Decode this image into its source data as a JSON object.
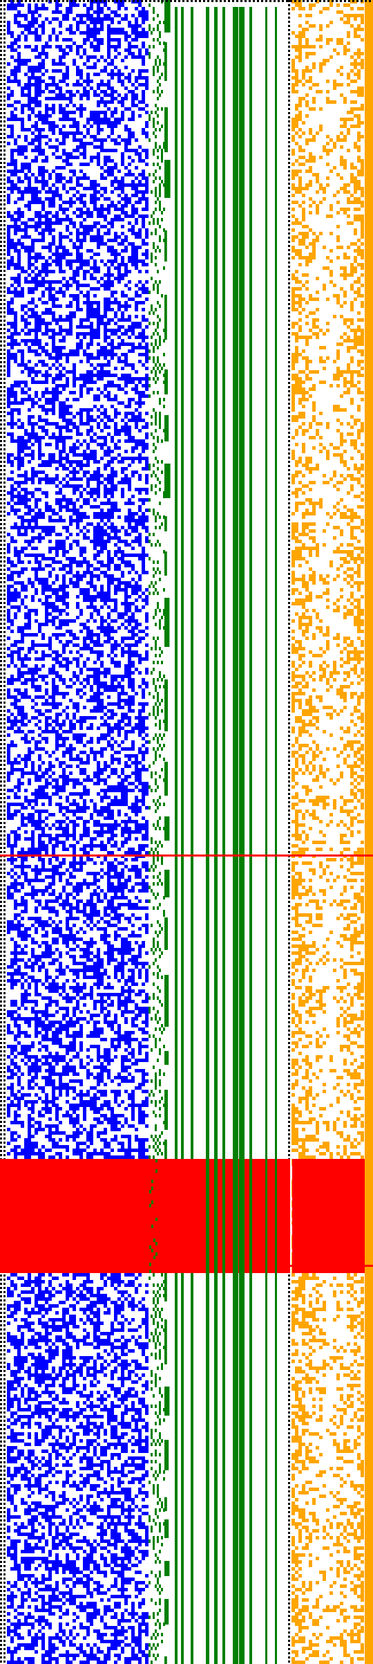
{
  "visualization": {
    "description_free": true,
    "palette": {
      "background": "#ffffff",
      "boundary": "#000000",
      "left_random_field": "#0000ff",
      "sweep_columns": "#007f00",
      "right_random_field": "#ffa500",
      "highlight": "#ff0000"
    },
    "highlight_region": {
      "filled_band": true,
      "boundary_lines": 2
    },
    "field_density": {
      "left_blue": 0.5,
      "right_orange": 0.42
    },
    "sweep_column_count": 12
  }
}
